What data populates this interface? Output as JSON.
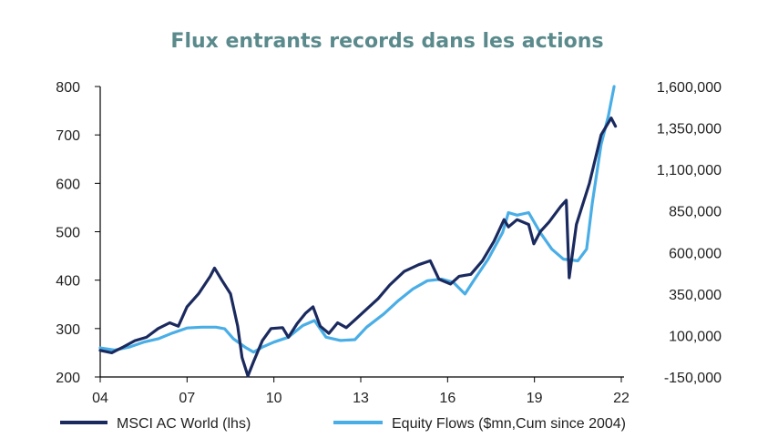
{
  "chart_data": {
    "type": "line",
    "title": "Flux entrants records dans les actions",
    "title_color": "#5b8a8c",
    "x_ticks": [
      "04",
      "07",
      "10",
      "13",
      "16",
      "19",
      "22"
    ],
    "x_range": [
      2004,
      2022
    ],
    "y_left": {
      "range": [
        200,
        800
      ],
      "ticks": [
        "200",
        "300",
        "400",
        "500",
        "600",
        "700",
        "800"
      ]
    },
    "y_right": {
      "range": [
        -150000,
        1600000
      ],
      "ticks": [
        "-150,000",
        "100,000",
        "350,000",
        "600,000",
        "850,000",
        "1,100,000",
        "1,350,000",
        "1,600,000"
      ]
    },
    "grid": false,
    "legend_position": "bottom",
    "series": [
      {
        "name": "MSCI AC World (lhs)",
        "axis": "left",
        "color": "#1b2a5e",
        "points": [
          [
            2004.0,
            255
          ],
          [
            2004.4,
            250
          ],
          [
            2004.8,
            262
          ],
          [
            2005.2,
            275
          ],
          [
            2005.6,
            282
          ],
          [
            2006.0,
            300
          ],
          [
            2006.4,
            312
          ],
          [
            2006.7,
            305
          ],
          [
            2007.0,
            345
          ],
          [
            2007.4,
            372
          ],
          [
            2007.8,
            408
          ],
          [
            2007.95,
            425
          ],
          [
            2008.2,
            400
          ],
          [
            2008.5,
            372
          ],
          [
            2008.75,
            305
          ],
          [
            2008.9,
            240
          ],
          [
            2009.1,
            202
          ],
          [
            2009.3,
            232
          ],
          [
            2009.6,
            275
          ],
          [
            2009.9,
            300
          ],
          [
            2010.3,
            302
          ],
          [
            2010.5,
            282
          ],
          [
            2010.8,
            310
          ],
          [
            2011.1,
            332
          ],
          [
            2011.35,
            345
          ],
          [
            2011.6,
            305
          ],
          [
            2011.9,
            290
          ],
          [
            2012.2,
            312
          ],
          [
            2012.5,
            302
          ],
          [
            2012.8,
            318
          ],
          [
            2013.2,
            340
          ],
          [
            2013.6,
            362
          ],
          [
            2014.0,
            390
          ],
          [
            2014.5,
            418
          ],
          [
            2015.0,
            432
          ],
          [
            2015.4,
            440
          ],
          [
            2015.7,
            402
          ],
          [
            2016.1,
            392
          ],
          [
            2016.4,
            408
          ],
          [
            2016.8,
            412
          ],
          [
            2017.2,
            440
          ],
          [
            2017.6,
            480
          ],
          [
            2017.95,
            525
          ],
          [
            2018.1,
            510
          ],
          [
            2018.4,
            525
          ],
          [
            2018.8,
            515
          ],
          [
            2018.98,
            475
          ],
          [
            2019.2,
            500
          ],
          [
            2019.5,
            520
          ],
          [
            2019.9,
            552
          ],
          [
            2020.1,
            565
          ],
          [
            2020.2,
            405
          ],
          [
            2020.45,
            515
          ],
          [
            2020.9,
            600
          ],
          [
            2021.3,
            700
          ],
          [
            2021.65,
            735
          ],
          [
            2021.8,
            718
          ]
        ]
      },
      {
        "name": "Equity Flows ($mn,Cum since 2004)",
        "axis": "right",
        "color": "#4aaee6",
        "points": [
          [
            2004.0,
            25000
          ],
          [
            2004.5,
            12000
          ],
          [
            2005.0,
            30000
          ],
          [
            2005.5,
            60000
          ],
          [
            2006.0,
            80000
          ],
          [
            2006.5,
            115000
          ],
          [
            2007.0,
            145000
          ],
          [
            2007.5,
            150000
          ],
          [
            2008.0,
            150000
          ],
          [
            2008.3,
            140000
          ],
          [
            2008.6,
            80000
          ],
          [
            2009.0,
            30000
          ],
          [
            2009.3,
            0
          ],
          [
            2009.6,
            30000
          ],
          [
            2010.0,
            60000
          ],
          [
            2010.5,
            90000
          ],
          [
            2011.0,
            160000
          ],
          [
            2011.4,
            190000
          ],
          [
            2011.8,
            90000
          ],
          [
            2012.3,
            70000
          ],
          [
            2012.8,
            75000
          ],
          [
            2013.2,
            150000
          ],
          [
            2013.8,
            230000
          ],
          [
            2014.3,
            310000
          ],
          [
            2014.8,
            380000
          ],
          [
            2015.3,
            430000
          ],
          [
            2015.8,
            440000
          ],
          [
            2016.2,
            420000
          ],
          [
            2016.6,
            350000
          ],
          [
            2016.9,
            430000
          ],
          [
            2017.4,
            560000
          ],
          [
            2017.9,
            720000
          ],
          [
            2018.1,
            840000
          ],
          [
            2018.4,
            825000
          ],
          [
            2018.8,
            840000
          ],
          [
            2019.2,
            720000
          ],
          [
            2019.6,
            620000
          ],
          [
            2020.0,
            560000
          ],
          [
            2020.5,
            550000
          ],
          [
            2020.8,
            620000
          ],
          [
            2021.0,
            900000
          ],
          [
            2021.3,
            1250000
          ],
          [
            2021.55,
            1420000
          ],
          [
            2021.75,
            1600000
          ]
        ]
      }
    ]
  }
}
